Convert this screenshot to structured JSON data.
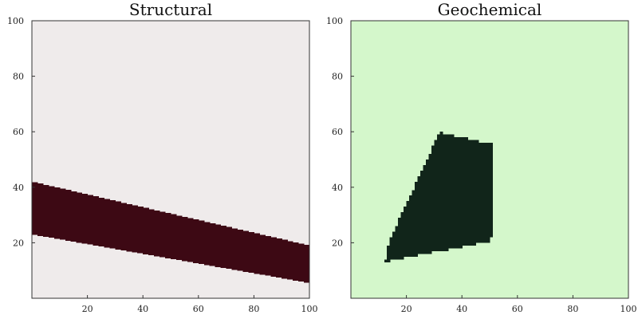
{
  "chart_data": [
    {
      "type": "heatmap",
      "title": "Structural",
      "xlim": [
        0,
        100
      ],
      "ylim": [
        0,
        100
      ],
      "xticks": [
        20,
        40,
        60,
        80,
        100
      ],
      "yticks": [
        20,
        40,
        60,
        80,
        100
      ],
      "background_color": "#efebeb",
      "region_color": "#3d0914",
      "region": {
        "shape": "band",
        "x_range": [
          0,
          100
        ],
        "lower_edge": [
          [
            0,
            23
          ],
          [
            100,
            5.5
          ]
        ],
        "upper_edge": [
          [
            0,
            42
          ],
          [
            100,
            19
          ]
        ]
      }
    },
    {
      "type": "heatmap",
      "title": "Geochemical",
      "xlim": [
        0,
        100
      ],
      "ylim": [
        0,
        100
      ],
      "xticks": [
        20,
        40,
        60,
        80,
        100
      ],
      "yticks": [
        20,
        40,
        60,
        80,
        100
      ],
      "background_color": "#d4f7cb",
      "region_color": "#11251a",
      "region": {
        "shape": "polygon",
        "vertices": [
          [
            12.5,
            13.5
          ],
          [
            14,
            21
          ],
          [
            32,
            60
          ],
          [
            33,
            59.5
          ],
          [
            51,
            55.5
          ],
          [
            51,
            24
          ],
          [
            50,
            20.5
          ],
          [
            14,
            13.5
          ]
        ]
      }
    }
  ]
}
